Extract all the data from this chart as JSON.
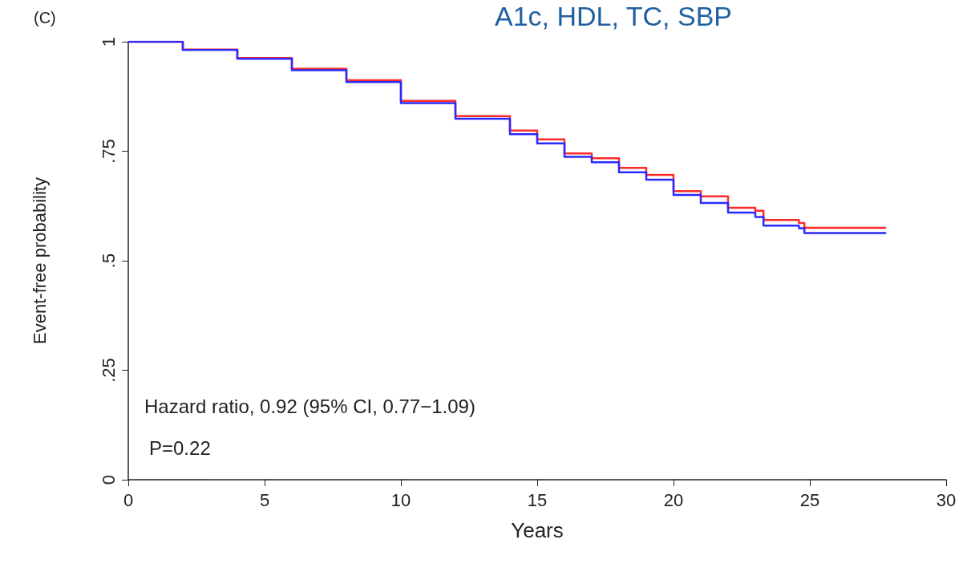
{
  "chart_data": {
    "type": "step",
    "title": "A1c, HDL, TC, SBP",
    "xlabel": "Years",
    "ylabel": "Event-free probability",
    "annotations": [
      "(C)",
      "Hazard ratio, 0.92 (95% CI, 0.77−1.09)",
      "P=0.22"
    ],
    "series": [
      {
        "color": "#ff2a2a",
        "x": [
          0,
          2,
          4,
          6,
          8,
          10,
          12,
          14,
          15,
          16,
          17,
          18,
          19,
          20,
          21,
          22,
          23,
          23.3,
          24.6,
          24.8,
          27.8
        ],
        "values": [
          1,
          0.982,
          0.963,
          0.938,
          0.912,
          0.865,
          0.83,
          0.797,
          0.777,
          0.745,
          0.734,
          0.712,
          0.696,
          0.659,
          0.647,
          0.621,
          0.614,
          0.593,
          0.586,
          0.575,
          0.575
        ]
      },
      {
        "color": "#2a2aff",
        "x": [
          0,
          2,
          4,
          6,
          8,
          10,
          12,
          14,
          15,
          16,
          17,
          18,
          19,
          20,
          21,
          22,
          23,
          23.3,
          24.6,
          24.8,
          27.8
        ],
        "values": [
          1,
          0.981,
          0.961,
          0.935,
          0.908,
          0.86,
          0.824,
          0.789,
          0.768,
          0.737,
          0.725,
          0.702,
          0.685,
          0.65,
          0.632,
          0.61,
          0.6,
          0.58,
          0.574,
          0.563,
          0.563
        ]
      }
    ],
    "xlim": [
      0,
      30
    ],
    "xticks": [
      0,
      5,
      10,
      15,
      20,
      25,
      30
    ],
    "ylim": [
      0,
      1
    ],
    "yticks": [
      0,
      {
        "value": 0.25,
        "label": ".25"
      },
      {
        "value": 0.5,
        "label": ".5"
      },
      {
        "value": 0.75,
        "label": ".75"
      },
      1
    ],
    "grid": false,
    "marker": "none",
    "line_style": "solid"
  }
}
